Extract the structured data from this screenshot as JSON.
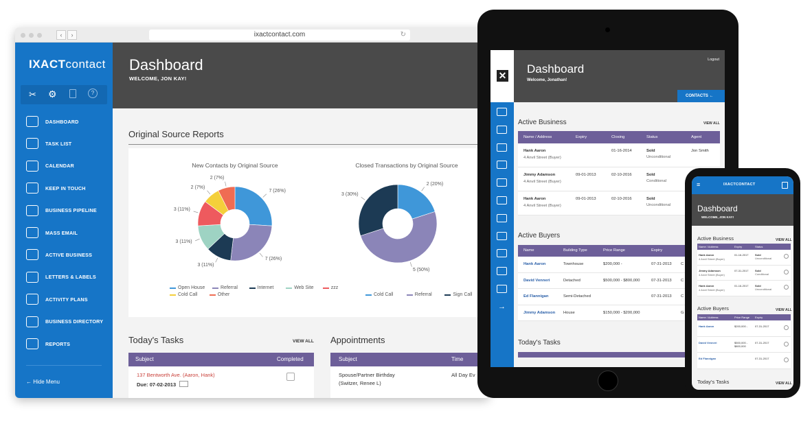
{
  "browser": {
    "url": "ixactcontact.com"
  },
  "sidebar": {
    "logo_bold": "IXACT",
    "logo_rest": "contact",
    "items": [
      {
        "label": "DASHBOARD",
        "icon": "speedometer-icon"
      },
      {
        "label": "TASK LIST",
        "icon": "checklist-icon"
      },
      {
        "label": "CALENDAR",
        "icon": "calendar-icon"
      },
      {
        "label": "KEEP IN TOUCH",
        "icon": "people-icon"
      },
      {
        "label": "BUSINESS PIPELINE",
        "icon": "funnel-icon"
      },
      {
        "label": "MASS EMAIL",
        "icon": "envelope-icon"
      },
      {
        "label": "ACTIVE  BUSINESS",
        "icon": "house-icon"
      },
      {
        "label": "LETTERS & LABELS",
        "icon": "letters-icon"
      },
      {
        "label": "ACTIVITY PLANS",
        "icon": "plan-icon"
      },
      {
        "label": "BUSINESS DIRECTORY",
        "icon": "directory-icon"
      },
      {
        "label": "REPORTS",
        "icon": "report-icon"
      }
    ],
    "hide_menu": "Hide Menu"
  },
  "header": {
    "title": "Dashboard",
    "welcome": "WELCOME, JON KAY!"
  },
  "osr": {
    "title": "Original Source Reports"
  },
  "chart_data": [
    {
      "type": "pie",
      "title": "New Contacts by Original Source",
      "slices": [
        {
          "label": "7 (26%)",
          "name": "Open House",
          "value": 7,
          "color": "#3f97d9"
        },
        {
          "label": "7 (26%)",
          "name": "Referral",
          "value": 7,
          "color": "#8b85b8"
        },
        {
          "label": "3 (11%)",
          "name": "Internet",
          "value": 3,
          "color": "#1c3a54"
        },
        {
          "label": "3 (11%)",
          "name": "Web Site",
          "value": 3,
          "color": "#9ed3c3"
        },
        {
          "label": "3 (11%)",
          "name": "zzz",
          "value": 3,
          "color": "#ee5a5e"
        },
        {
          "label": "2 (7%)",
          "name": "Cold Call",
          "value": 2,
          "color": "#f4cf3b"
        },
        {
          "label": "2 (7%)",
          "name": "Other",
          "value": 2,
          "color": "#ef6c53"
        }
      ],
      "legend": [
        "Open House",
        "Referral",
        "Internet",
        "Web Site",
        "zzz",
        "Cold Call",
        "Other"
      ]
    },
    {
      "type": "pie",
      "title": "Closed Transactions by Original Source",
      "slices": [
        {
          "label": "2 (20%)",
          "name": "Cold Call",
          "value": 2,
          "color": "#3f97d9"
        },
        {
          "label": "5 (50%)",
          "name": "Referral",
          "value": 5,
          "color": "#8b85b8"
        },
        {
          "label": "3 (30%)",
          "name": "Sign Call",
          "value": 3,
          "color": "#1c3a54"
        }
      ],
      "legend": [
        "Cold Call",
        "Referral",
        "Sign Call"
      ]
    }
  ],
  "tasks": {
    "title": "Today's Tasks",
    "view_all": "VIEW ALL",
    "col1": "Subject",
    "col2": "Completed",
    "row_subject": "137 Bentworth Ave. (Aaron, Hank)",
    "row_due": "Due: 07-02-2013"
  },
  "appointments": {
    "title": "Appointments",
    "col1": "Subject",
    "col2": "Time",
    "row_subject1": "Spouse/Partner Birthday",
    "row_subject2": "(Switzer, Renee L)",
    "row_time": "All Day Ev"
  },
  "tablet": {
    "logout": "Logout",
    "title": "Dashboard",
    "welcome": "Welcome, Jonathan!",
    "contacts_btn": "CONTACTS",
    "active_business": {
      "title": "Active Business",
      "view_all": "VIEW ALL",
      "cols": [
        "Name / Address",
        "Expiry",
        "Closing",
        "Status",
        "Agent"
      ],
      "rows": [
        {
          "name": "Hank Aaron",
          "addr": "4 Anvil Street (Buyer)",
          "expiry": "",
          "closing": "01-16-2014",
          "status": "Sold",
          "sub": "Unconditional",
          "agent": "Jon Smith"
        },
        {
          "name": "Jimmy Adamson",
          "addr": "4 Anvil Street (Buyer)",
          "expiry": "09-01-2013",
          "closing": "02-10-2016",
          "status": "Sold",
          "sub": "Conditional",
          "agent": ""
        },
        {
          "name": "Hank Aaron",
          "addr": "4 Anvil Street (Buyer)",
          "expiry": "09-01-2013",
          "closing": "02-10-2016",
          "status": "Sold",
          "sub": "Unconditional",
          "agent": ""
        }
      ]
    },
    "active_buyers": {
      "title": "Active Buyers",
      "cols": [
        "Name",
        "Building Type",
        "Price Range",
        "Expiry"
      ],
      "rows": [
        {
          "name": "Hank Aaron",
          "type": "Townhouse",
          "price": "$200,000 -",
          "expiry": "07-31-2013",
          "extra": "C"
        },
        {
          "name": "David Venneri",
          "type": "Detached",
          "price": "$500,000 - $800,000",
          "expiry": "07-31-2013",
          "extra": "C"
        },
        {
          "name": "Ed Flannigan",
          "type": "Semi-Detached",
          "price": "",
          "expiry": "07-31-2013",
          "extra": "C"
        },
        {
          "name": "Jimmy Adamson",
          "type": "House",
          "price": "$150,000 - $200,000",
          "expiry": "",
          "extra": "G"
        }
      ]
    },
    "tasks_title": "Today's Tasks"
  },
  "phone": {
    "brand": "IXACTCONTACT",
    "title": "Dashboard",
    "welcome": "WELCOME, JON KAY!",
    "ab": {
      "title": "Active Business",
      "view_all": "VIEW ALL",
      "cols": [
        "Name / Address",
        "Expiry",
        "Status"
      ],
      "rows": [
        {
          "name": "Hank Aaron",
          "addr": "4 Anvil Street (Buyer)",
          "exp": "01-16-2017",
          "status": "Sold",
          "sub": "Unconditional"
        },
        {
          "name": "Jimmy Adamson",
          "addr": "4 Anvil Street (Buyer)",
          "exp": "07-31-2017",
          "status": "Sold",
          "sub": "Conditional"
        },
        {
          "name": "Hank Aaron",
          "addr": "4 Anvil Street (Buyer)",
          "exp": "01-16-2017",
          "status": "Sold",
          "sub": "Unconditional"
        }
      ]
    },
    "buy": {
      "title": "Active Buyers",
      "view_all": "VIEW ALL",
      "cols": [
        "Name / Address",
        "Price Range",
        "Expiry"
      ],
      "rows": [
        {
          "name": "Hank Aaron",
          "price": "$200,000 -",
          "exp": "07-31-2017"
        },
        {
          "name": "David Venneri",
          "price": "$500,000 - $800,000",
          "exp": "07-31-2017"
        },
        {
          "name": "Ed Flannigan",
          "price": "",
          "exp": "07-31-2017"
        }
      ]
    },
    "tasks": {
      "title": "Today's Tasks",
      "view_all": "VIEW ALL"
    }
  }
}
